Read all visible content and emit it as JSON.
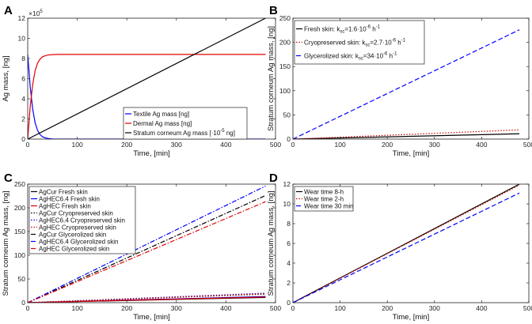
{
  "chart_data": [
    {
      "panel": "A",
      "type": "line",
      "xlabel": "Time, [min]",
      "ylabel": "Ag mass, [ng]",
      "xlim": [
        0,
        500
      ],
      "ylim": [
        0,
        1200000
      ],
      "y_exponent_label": "×10",
      "y_exponent_power": "5",
      "xticks": [
        "0",
        "100",
        "200",
        "300",
        "400",
        "500"
      ],
      "yticks": [
        "0",
        "2",
        "4",
        "6",
        "8",
        "10",
        "12"
      ],
      "legend_position": "bottom-right",
      "series": [
        {
          "name": "Textile Ag mass [ng]",
          "color": "#0000ff",
          "dash": "solid",
          "x": [
            0,
            5,
            10,
            15,
            20,
            25,
            30,
            40,
            50,
            60,
            480
          ],
          "y": [
            840000,
            520000,
            300000,
            160000,
            85000,
            45000,
            22000,
            6000,
            1500,
            400,
            0
          ]
        },
        {
          "name": "Dermal Ag mass [ng]",
          "color": "#e00000",
          "dash": "solid",
          "x": [
            0,
            5,
            10,
            15,
            20,
            25,
            30,
            40,
            50,
            60,
            480
          ],
          "y": [
            0,
            320000,
            540000,
            680000,
            755000,
            795000,
            818000,
            834000,
            838000,
            840000,
            840000
          ]
        },
        {
          "name": "Stratum corneum Ag mass [·10",
          "name_power": "-5",
          "name_suffix": " ng]",
          "color": "#000000",
          "dash": "solid",
          "x": [
            0,
            480
          ],
          "y": [
            0,
            1200000
          ]
        }
      ]
    },
    {
      "panel": "B",
      "type": "line",
      "xlabel": "Time, [min]",
      "ylabel": "Stratum corneum Ag mass, [ng]",
      "xlim": [
        0,
        500
      ],
      "ylim": [
        0,
        250
      ],
      "xticks": [
        "0",
        "100",
        "200",
        "300",
        "400",
        "500"
      ],
      "yticks": [
        "0",
        "50",
        "100",
        "150",
        "200",
        "250"
      ],
      "legend_position": "top-left",
      "series": [
        {
          "name": "Fresh skin: k",
          "name_sub": "sc",
          "name_mid": "=1.6·10",
          "name_power": "-6",
          "name_suffix": " h",
          "name_power2": "-1",
          "color": "#000000",
          "dash": "solid",
          "x": [
            0,
            480
          ],
          "y": [
            0,
            11
          ]
        },
        {
          "name": "Cryopreserved skin: k",
          "name_sub": "sc",
          "name_mid": "=2.7·10",
          "name_power": "-6",
          "name_suffix": " h",
          "name_power2": "-1",
          "color": "#cc0000",
          "dash": "dotted",
          "x": [
            0,
            480
          ],
          "y": [
            0,
            19
          ]
        },
        {
          "name": "Glycerolized skin: k",
          "name_sub": "sc",
          "name_mid": "=34·10",
          "name_power": "-6",
          "name_suffix": " h",
          "name_power2": "-1",
          "color": "#0000ff",
          "dash": "dashed",
          "x": [
            0,
            480
          ],
          "y": [
            0,
            226
          ]
        }
      ]
    },
    {
      "panel": "C",
      "type": "line",
      "xlabel": "Time, [min]",
      "ylabel": "Stratum corneum Ag mass, [ng]",
      "xlim": [
        0,
        500
      ],
      "ylim": [
        0,
        250
      ],
      "xticks": [
        "0",
        "100",
        "200",
        "300",
        "400",
        "500"
      ],
      "yticks": [
        "0",
        "50",
        "100",
        "150",
        "200",
        "250"
      ],
      "legend_position": "top-left",
      "series": [
        {
          "name": "AgCur Fresh skin",
          "color": "#000000",
          "dash": "solid",
          "x": [
            0,
            480
          ],
          "y": [
            0,
            11
          ]
        },
        {
          "name": "AgHEC6.4 Fresh skin",
          "color": "#0000ff",
          "dash": "solid",
          "x": [
            0,
            480
          ],
          "y": [
            0,
            13
          ]
        },
        {
          "name": "AgHEC Fresh skin",
          "color": "#e00000",
          "dash": "solid",
          "x": [
            0,
            480
          ],
          "y": [
            0,
            12
          ]
        },
        {
          "name": "AgCur Cryopreserved skin",
          "color": "#000000",
          "dash": "dotted",
          "x": [
            0,
            480
          ],
          "y": [
            0,
            18
          ]
        },
        {
          "name": "AgHEC6.4 Cryopreserved skin",
          "color": "#0000ff",
          "dash": "dotted",
          "x": [
            0,
            480
          ],
          "y": [
            0,
            20
          ]
        },
        {
          "name": "AgHEC Cryopreserved skin",
          "color": "#cc0000",
          "dash": "dotted",
          "x": [
            0,
            480
          ],
          "y": [
            0,
            19
          ]
        },
        {
          "name": "AgCur Glycerolized skin",
          "color": "#000000",
          "dash": "dashdot",
          "x": [
            0,
            480
          ],
          "y": [
            0,
            226
          ]
        },
        {
          "name": "AgHEC6.4 Glycerolized skin",
          "color": "#0000ff",
          "dash": "dashdot",
          "x": [
            0,
            480
          ],
          "y": [
            0,
            246
          ]
        },
        {
          "name": "AgHEC Glycerolized skin",
          "color": "#e00000",
          "dash": "dashdot",
          "x": [
            0,
            480
          ],
          "y": [
            0,
            213
          ]
        }
      ]
    },
    {
      "panel": "D",
      "type": "line",
      "xlabel": "Time, [min]",
      "ylabel": "Stratum corneum Ag mass, [ng]",
      "xlim": [
        0,
        500
      ],
      "ylim": [
        0,
        12
      ],
      "xticks": [
        "0",
        "100",
        "200",
        "300",
        "400",
        "500"
      ],
      "yticks": [
        "0",
        "2",
        "4",
        "6",
        "8",
        "10",
        "12"
      ],
      "legend_position": "top-left",
      "series": [
        {
          "name": "Wear time 8-h",
          "color": "#000000",
          "dash": "solid",
          "x": [
            0,
            480
          ],
          "y": [
            0,
            12
          ]
        },
        {
          "name": "Wear time 2-h",
          "color": "#cc0000",
          "dash": "dotted",
          "x": [
            0,
            480
          ],
          "y": [
            0,
            11.9
          ]
        },
        {
          "name": "Wear time 30 min",
          "color": "#0000ff",
          "dash": "dashed",
          "x": [
            0,
            480
          ],
          "y": [
            0,
            11.1
          ]
        }
      ]
    }
  ]
}
